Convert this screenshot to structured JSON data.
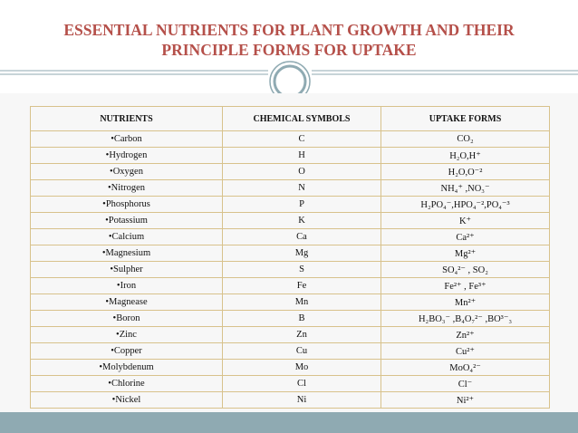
{
  "header": {
    "title_line1": "ESSENTIAL NUTRIENTS  FOR PLANT GROWTH AND THEIR",
    "title_line2": "PRINCIPLE   FORMS FOR UPTAKE"
  },
  "table": {
    "columns": [
      "NUTRIENTS",
      "CHEMICAL SYMBOLS",
      "UPTAKE FORMS"
    ],
    "rows": [
      [
        "•Carbon",
        "C",
        "CO₂"
      ],
      [
        "•Hydrogen",
        "H",
        "H₂O,H⁺"
      ],
      [
        "•Oxygen",
        "O",
        "H₂O,O⁻²"
      ],
      [
        "•Nitrogen",
        "N",
        "NH₄⁺ ,NO₃⁻"
      ],
      [
        "•Phosphorus",
        "P",
        "H₂PO₄⁻,HPO₄⁻²,PO₄⁻³"
      ],
      [
        "•Potassium",
        "K",
        "K⁺"
      ],
      [
        "•Calcium",
        "Ca",
        "Ca²⁺"
      ],
      [
        "•Magnesium",
        "Mg",
        "Mg²⁺"
      ],
      [
        "•Sulpher",
        "S",
        "SO₄²⁻ , SO₂"
      ],
      [
        "•Iron",
        "Fe",
        "Fe²⁺ , Fe³⁺"
      ],
      [
        "•Magnease",
        "Mn",
        "Mn²⁺"
      ],
      [
        "•Boron",
        "B",
        "H₂BO₃⁻ ,B₄O₇²⁻ ,BO³⁻₃"
      ],
      [
        "•Zinc",
        "Zn",
        "Zn²⁺"
      ],
      [
        "•Copper",
        "Cu",
        "Cu²⁺"
      ],
      [
        "•Molybdenum",
        "Mo",
        "MoO₄²⁻"
      ],
      [
        "•Chlorine",
        "Cl",
        "Cl⁻"
      ],
      [
        "•Nickel",
        "Ni",
        "Ni²⁺"
      ]
    ]
  }
}
